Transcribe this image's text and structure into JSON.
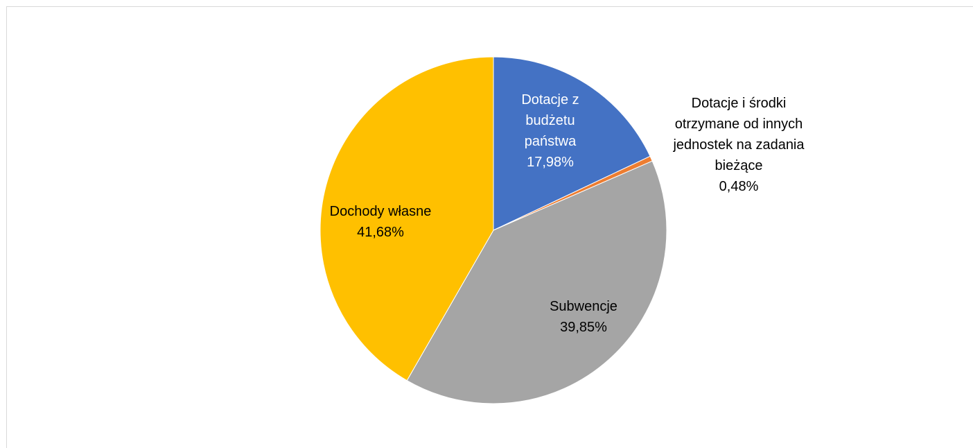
{
  "chart_data": {
    "type": "pie",
    "slices": [
      {
        "lines": [
          "Dotacje z",
          "budżetu",
          "państwa"
        ],
        "value_label": "17,98%",
        "value": 17.98,
        "color": "#4472c4",
        "label_color": "#ffffff"
      },
      {
        "lines": [
          "Dotacje i środki",
          "otrzymane od innych",
          "jednostek na zadania",
          "bieżące"
        ],
        "value_label": "0,48%",
        "value": 0.48,
        "color": "#ed7d31",
        "label_color": "#000000"
      },
      {
        "lines": [
          "Subwencje"
        ],
        "value_label": "39,85%",
        "value": 39.85,
        "color": "#a5a5a5",
        "label_color": "#000000"
      },
      {
        "lines": [
          "Dochody własne"
        ],
        "value_label": "41,68%",
        "value": 41.68,
        "color": "#ffc000",
        "label_color": "#000000"
      }
    ]
  }
}
